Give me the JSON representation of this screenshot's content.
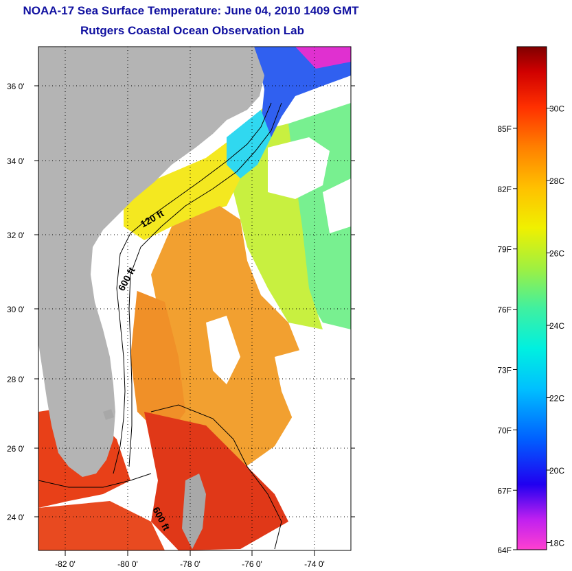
{
  "header": {
    "title": "NOAA-17 Sea Surface Temperature:  June 04, 2010 1409 GMT",
    "subtitle": "Rutgers Coastal Ocean Observation Lab"
  },
  "map": {
    "lat_labels": [
      "36 0'",
      "34 0'",
      "32 0'",
      "30 0'",
      "28 0'",
      "26 0'",
      "24 0'"
    ],
    "lon_labels": [
      "-82 0'",
      "-80 0'",
      "-78 0'",
      "-76 0'",
      "-74 0'"
    ],
    "lat_values": [
      36,
      34,
      32,
      30,
      28,
      26,
      24
    ],
    "lon_values": [
      -82,
      -80,
      -78,
      -76,
      -74
    ],
    "lat_range": [
      23.0,
      37.1
    ],
    "lon_range": [
      -83.0,
      -73.0
    ],
    "contour_labels": [
      "120 ft",
      "600 ft",
      "600 ft"
    ],
    "colors": {
      "land": "#b4b4b4",
      "cloud": "#ffffff",
      "warm_sst": "#f09020",
      "hot_sst": "#e03010",
      "mid_sst": "#f0e020",
      "cool_sst": "#70f080"
    }
  },
  "colorbar": {
    "fahrenheit_labels": [
      "85F",
      "82F",
      "79F",
      "76F",
      "73F",
      "70F",
      "67F",
      "64F"
    ],
    "celsius_labels": [
      "30C",
      "28C",
      "26C",
      "24C",
      "22C",
      "20C",
      "18C"
    ],
    "celsius_values": [
      30,
      28,
      26,
      24,
      22,
      20,
      18
    ],
    "fahrenheit_values": [
      85,
      82,
      79,
      76,
      73,
      70,
      67,
      64
    ],
    "range_c": [
      17.8,
      31.7
    ]
  }
}
